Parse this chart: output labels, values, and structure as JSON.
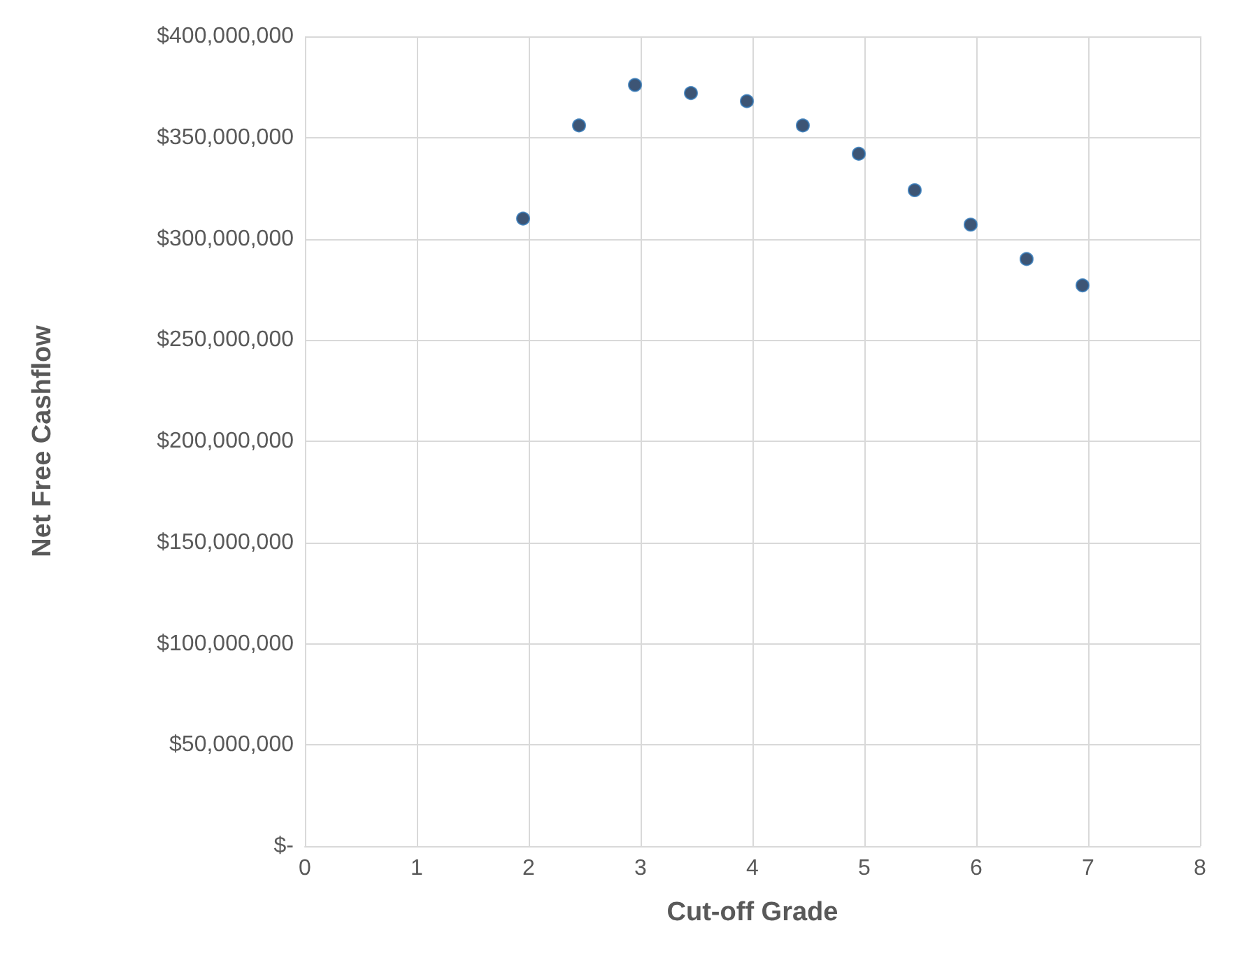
{
  "chart_data": {
    "type": "scatter",
    "xlabel": "Cut-off Grade",
    "ylabel": "Net Free Cashflow",
    "x": [
      1.95,
      2.45,
      2.95,
      3.45,
      3.95,
      4.45,
      4.95,
      5.45,
      5.95,
      6.45,
      6.95
    ],
    "values": [
      310000000,
      356000000,
      376000000,
      372000000,
      368000000,
      356000000,
      342000000,
      324000000,
      307000000,
      290000000,
      277000000
    ],
    "color": "#0d2b52",
    "xlim": [
      0,
      8
    ],
    "xticks": [
      0,
      1,
      2,
      3,
      4,
      5,
      6,
      7,
      8
    ],
    "ylim": [
      0,
      400000000
    ],
    "yticks": [
      {
        "value": 0,
        "label": "$-"
      },
      {
        "value": 50000000,
        "label": "$50,000,000"
      },
      {
        "value": 100000000,
        "label": "$100,000,000"
      },
      {
        "value": 150000000,
        "label": "$150,000,000"
      },
      {
        "value": 200000000,
        "label": "$200,000,000"
      },
      {
        "value": 250000000,
        "label": "$250,000,000"
      },
      {
        "value": 300000000,
        "label": "$300,000,000"
      },
      {
        "value": 350000000,
        "label": "$350,000,000"
      },
      {
        "value": 400000000,
        "label": "$400,000,000"
      }
    ],
    "grid": true,
    "marker": "circle"
  }
}
